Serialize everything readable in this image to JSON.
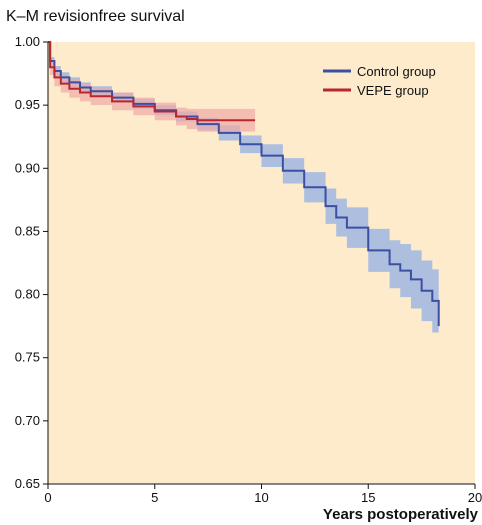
{
  "chart_data": {
    "type": "line",
    "title": "K–M revisionfree survival",
    "xlabel": "Years postoperatively",
    "ylabel": "",
    "xlim": [
      0,
      20
    ],
    "ylim": [
      0.65,
      1.0
    ],
    "xticks": [
      "0",
      "5",
      "10",
      "15",
      "20"
    ],
    "yticks": [
      "1.00",
      "0.95",
      "0.90",
      "0.85",
      "0.80",
      "0.75",
      "0.70",
      "0.65"
    ],
    "grid": false,
    "legend_position": "top-right",
    "background_color": "#fdebcb",
    "series": [
      {
        "name": "Control group",
        "color": "#3b4fa3",
        "band_color": "#9fb6e3",
        "x": [
          0,
          0.1,
          0.3,
          0.6,
          1,
          1.5,
          2,
          3,
          4,
          5,
          6,
          7,
          8,
          9,
          10,
          11,
          12,
          13,
          13.5,
          14,
          15,
          16,
          16.5,
          17,
          17.5,
          18,
          18.3
        ],
        "y": [
          1.0,
          0.985,
          0.977,
          0.972,
          0.968,
          0.964,
          0.961,
          0.956,
          0.951,
          0.946,
          0.941,
          0.935,
          0.928,
          0.919,
          0.91,
          0.898,
          0.885,
          0.87,
          0.861,
          0.853,
          0.835,
          0.824,
          0.819,
          0.812,
          0.803,
          0.795,
          0.775
        ],
        "lower": [
          1.0,
          0.982,
          0.973,
          0.968,
          0.964,
          0.96,
          0.957,
          0.952,
          0.947,
          0.942,
          0.937,
          0.93,
          0.922,
          0.912,
          0.901,
          0.888,
          0.873,
          0.856,
          0.846,
          0.837,
          0.818,
          0.805,
          0.798,
          0.789,
          0.779,
          0.77,
          0.747
        ],
        "upper": [
          1.0,
          0.988,
          0.981,
          0.976,
          0.972,
          0.968,
          0.965,
          0.96,
          0.955,
          0.95,
          0.945,
          0.94,
          0.934,
          0.926,
          0.919,
          0.908,
          0.897,
          0.884,
          0.876,
          0.869,
          0.852,
          0.843,
          0.84,
          0.835,
          0.827,
          0.82,
          0.816
        ]
      },
      {
        "name": "VEPE group",
        "color": "#b8262e",
        "band_color": "#eeaaa6",
        "x": [
          0,
          0.1,
          0.3,
          0.6,
          1,
          1.5,
          2,
          3,
          4,
          5,
          6,
          6.5,
          7,
          8,
          9,
          9.7
        ],
        "y": [
          1.0,
          0.98,
          0.972,
          0.967,
          0.963,
          0.96,
          0.957,
          0.953,
          0.949,
          0.945,
          0.941,
          0.939,
          0.938,
          0.938,
          0.938,
          0.938
        ],
        "lower": [
          1.0,
          0.974,
          0.965,
          0.96,
          0.956,
          0.953,
          0.95,
          0.946,
          0.942,
          0.938,
          0.934,
          0.931,
          0.929,
          0.929,
          0.929,
          0.929
        ],
        "upper": [
          1.0,
          0.986,
          0.979,
          0.974,
          0.97,
          0.967,
          0.964,
          0.96,
          0.956,
          0.952,
          0.948,
          0.947,
          0.947,
          0.947,
          0.947,
          0.947
        ]
      }
    ]
  }
}
